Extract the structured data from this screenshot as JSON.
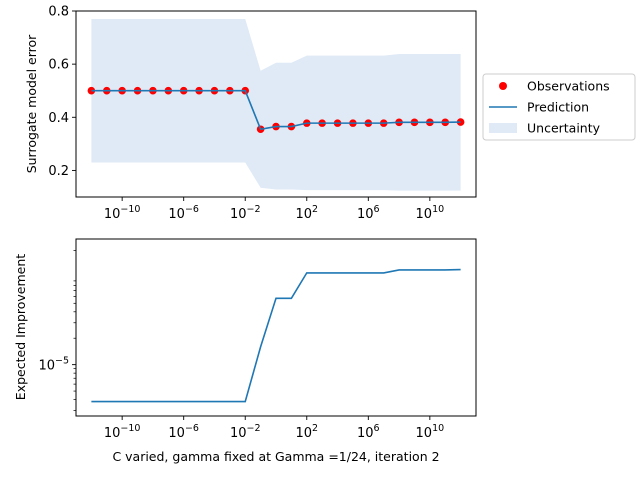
{
  "chart_data": [
    {
      "type": "line",
      "xscale": "log",
      "xlabel": "",
      "ylabel": "Surrogate model error",
      "xlim": [
        1e-13,
        10000000000000.0
      ],
      "ylim": [
        0.1,
        0.8
      ],
      "yticks": [
        0.2,
        0.4,
        0.6,
        0.8
      ],
      "ytick_labels": [
        "0.2",
        "0.4",
        "0.6",
        "0.8"
      ],
      "xticks": [
        1e-10,
        1e-06,
        0.01,
        100,
        1000000.0,
        10000000000.0
      ],
      "xtick_labels": [
        {
          "base": "10",
          "exp": "−10"
        },
        {
          "base": "10",
          "exp": "−6"
        },
        {
          "base": "10",
          "exp": "−2"
        },
        {
          "base": "10",
          "exp": "2"
        },
        {
          "base": "10",
          "exp": "6"
        },
        {
          "base": "10",
          "exp": "10"
        }
      ],
      "legend": {
        "placement": "right",
        "entries": [
          {
            "key": "observations",
            "label": "Observations"
          },
          {
            "key": "prediction",
            "label": "Prediction"
          },
          {
            "key": "uncertainty",
            "label": "Uncertainty"
          }
        ]
      },
      "colors": {
        "observations": "#ff0000",
        "prediction": "#1f77b4",
        "uncertainty": "#dfeaf6"
      },
      "grid": false,
      "observations": {
        "x": [
          1e-12,
          1e-11,
          1e-10,
          1e-09,
          1e-08,
          1e-07,
          1e-06,
          1e-05,
          0.0001,
          0.001,
          0.01,
          0.1,
          1,
          10,
          100,
          1000,
          10000,
          100000,
          1000000.0,
          10000000.0,
          100000000.0,
          1000000000.0,
          10000000000.0,
          100000000000.0,
          1000000000000.0
        ],
        "y": [
          0.5,
          0.5,
          0.5,
          0.5,
          0.5,
          0.5,
          0.5,
          0.5,
          0.5,
          0.5,
          0.5,
          0.355,
          0.365,
          0.365,
          0.378,
          0.378,
          0.378,
          0.378,
          0.378,
          0.378,
          0.381,
          0.381,
          0.381,
          0.381,
          0.382
        ]
      },
      "prediction": {
        "x": [
          1e-12,
          1e-11,
          1e-10,
          1e-09,
          1e-08,
          1e-07,
          1e-06,
          1e-05,
          0.0001,
          0.001,
          0.01,
          0.1,
          1,
          10,
          100,
          1000,
          10000,
          100000,
          1000000.0,
          10000000.0,
          100000000.0,
          1000000000.0,
          10000000000.0,
          100000000000.0,
          1000000000000.0
        ],
        "y": [
          0.5,
          0.5,
          0.5,
          0.5,
          0.5,
          0.5,
          0.5,
          0.5,
          0.5,
          0.5,
          0.5,
          0.355,
          0.365,
          0.365,
          0.378,
          0.378,
          0.378,
          0.378,
          0.378,
          0.378,
          0.381,
          0.381,
          0.381,
          0.381,
          0.382
        ]
      },
      "uncertainty": {
        "x": [
          1e-12,
          1e-11,
          1e-10,
          1e-09,
          1e-08,
          1e-07,
          1e-06,
          1e-05,
          0.0001,
          0.001,
          0.01,
          0.1,
          1,
          10,
          100,
          1000,
          10000,
          100000,
          1000000.0,
          10000000.0,
          100000000.0,
          1000000000.0,
          10000000000.0,
          100000000000.0,
          1000000000000.0
        ],
        "upper": [
          0.77,
          0.77,
          0.77,
          0.77,
          0.77,
          0.77,
          0.77,
          0.77,
          0.77,
          0.77,
          0.77,
          0.575,
          0.605,
          0.605,
          0.632,
          0.632,
          0.632,
          0.632,
          0.632,
          0.632,
          0.638,
          0.638,
          0.638,
          0.638,
          0.638
        ],
        "lower": [
          0.23,
          0.23,
          0.23,
          0.23,
          0.23,
          0.23,
          0.23,
          0.23,
          0.23,
          0.23,
          0.23,
          0.135,
          0.128,
          0.128,
          0.126,
          0.126,
          0.126,
          0.126,
          0.126,
          0.126,
          0.124,
          0.124,
          0.124,
          0.124,
          0.124
        ]
      }
    },
    {
      "type": "line",
      "xscale": "log",
      "yscale": "log",
      "xlabel": "C varied, gamma fixed at Gamma =1/24, iteration 2",
      "ylabel": "Expected Improvement",
      "xlim": [
        1e-13,
        10000000000000.0
      ],
      "ylim": [
        2.6e-06,
        0.00027
      ],
      "yticks": [
        1e-05
      ],
      "ytick_labels": [
        {
          "base": "10",
          "exp": "−5"
        }
      ],
      "xticks": [
        1e-10,
        1e-06,
        0.01,
        100,
        1000000.0,
        10000000000.0
      ],
      "xtick_labels": [
        {
          "base": "10",
          "exp": "−10"
        },
        {
          "base": "10",
          "exp": "−6"
        },
        {
          "base": "10",
          "exp": "−2"
        },
        {
          "base": "10",
          "exp": "2"
        },
        {
          "base": "10",
          "exp": "6"
        },
        {
          "base": "10",
          "exp": "10"
        }
      ],
      "colors": {
        "line": "#1f77b4"
      },
      "grid": false,
      "series": [
        {
          "x": [
            1e-12,
            1e-11,
            1e-10,
            1e-09,
            1e-08,
            1e-07,
            1e-06,
            1e-05,
            0.0001,
            0.001,
            0.01,
            0.1,
            1,
            10,
            100,
            1000,
            10000,
            100000,
            1000000.0,
            10000000.0,
            100000000.0,
            1000000000.0,
            10000000000.0,
            100000000000.0,
            1000000000000.0
          ],
          "y": [
            3.8e-06,
            3.8e-06,
            3.8e-06,
            3.8e-06,
            3.8e-06,
            3.8e-06,
            3.8e-06,
            3.8e-06,
            3.8e-06,
            3.8e-06,
            3.8e-06,
            1.6e-05,
            5.7e-05,
            5.7e-05,
            0.000111,
            0.000111,
            0.000111,
            0.000111,
            0.000111,
            0.000111,
            0.00012,
            0.00012,
            0.00012,
            0.00012,
            0.000121
          ]
        }
      ]
    }
  ]
}
